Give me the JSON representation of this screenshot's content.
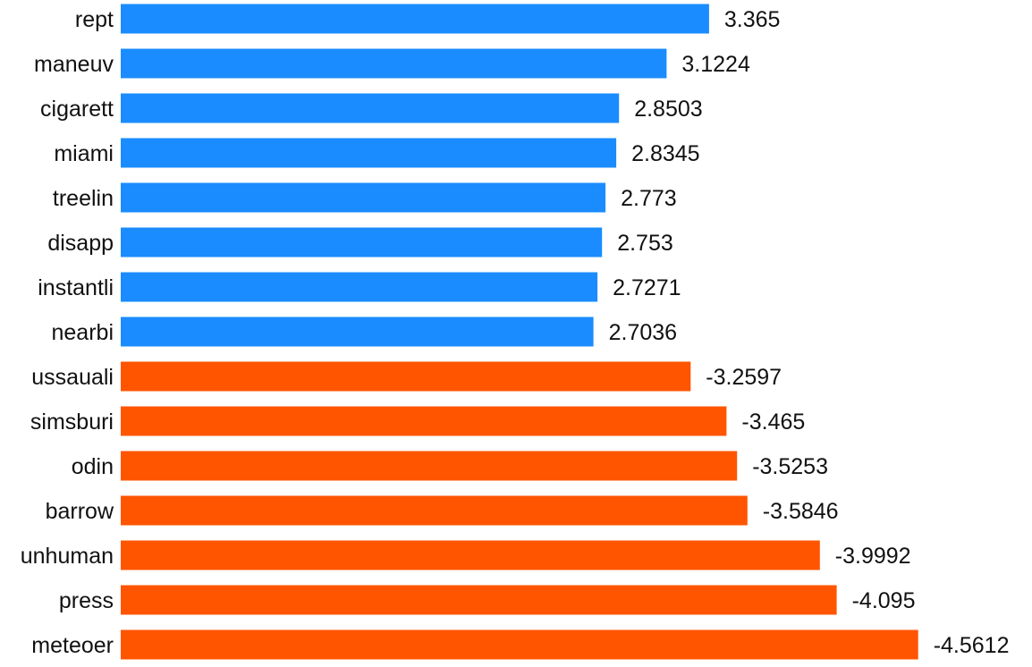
{
  "chart_data": {
    "type": "bar",
    "orientation": "horizontal",
    "categories": [
      "rept",
      "maneuv",
      "cigarett",
      "miami",
      "treelin",
      "disapp",
      "instantli",
      "nearbi",
      "ussauali",
      "simsburi",
      "odin",
      "barrow",
      "unhuman",
      "press",
      "meteoer"
    ],
    "values": [
      3.365,
      3.1224,
      2.8503,
      2.8345,
      2.773,
      2.753,
      2.7271,
      2.7036,
      -3.2597,
      -3.465,
      -3.5253,
      -3.5846,
      -3.9992,
      -4.095,
      -4.5612
    ],
    "value_labels": [
      "3.365",
      "3.1224",
      "2.8503",
      "2.8345",
      "2.773",
      "2.753",
      "2.7271",
      "2.7036",
      "-3.2597",
      "-3.465",
      "-3.5253",
      "-3.5846",
      "-3.9992",
      "-4.095",
      "-4.5612"
    ],
    "bar_length": "absolute value",
    "title": "",
    "xlabel": "",
    "ylabel": "",
    "grid": false,
    "legend": "none",
    "colors": {
      "positive": "#1a8cff",
      "negative": "#ff5500"
    }
  }
}
